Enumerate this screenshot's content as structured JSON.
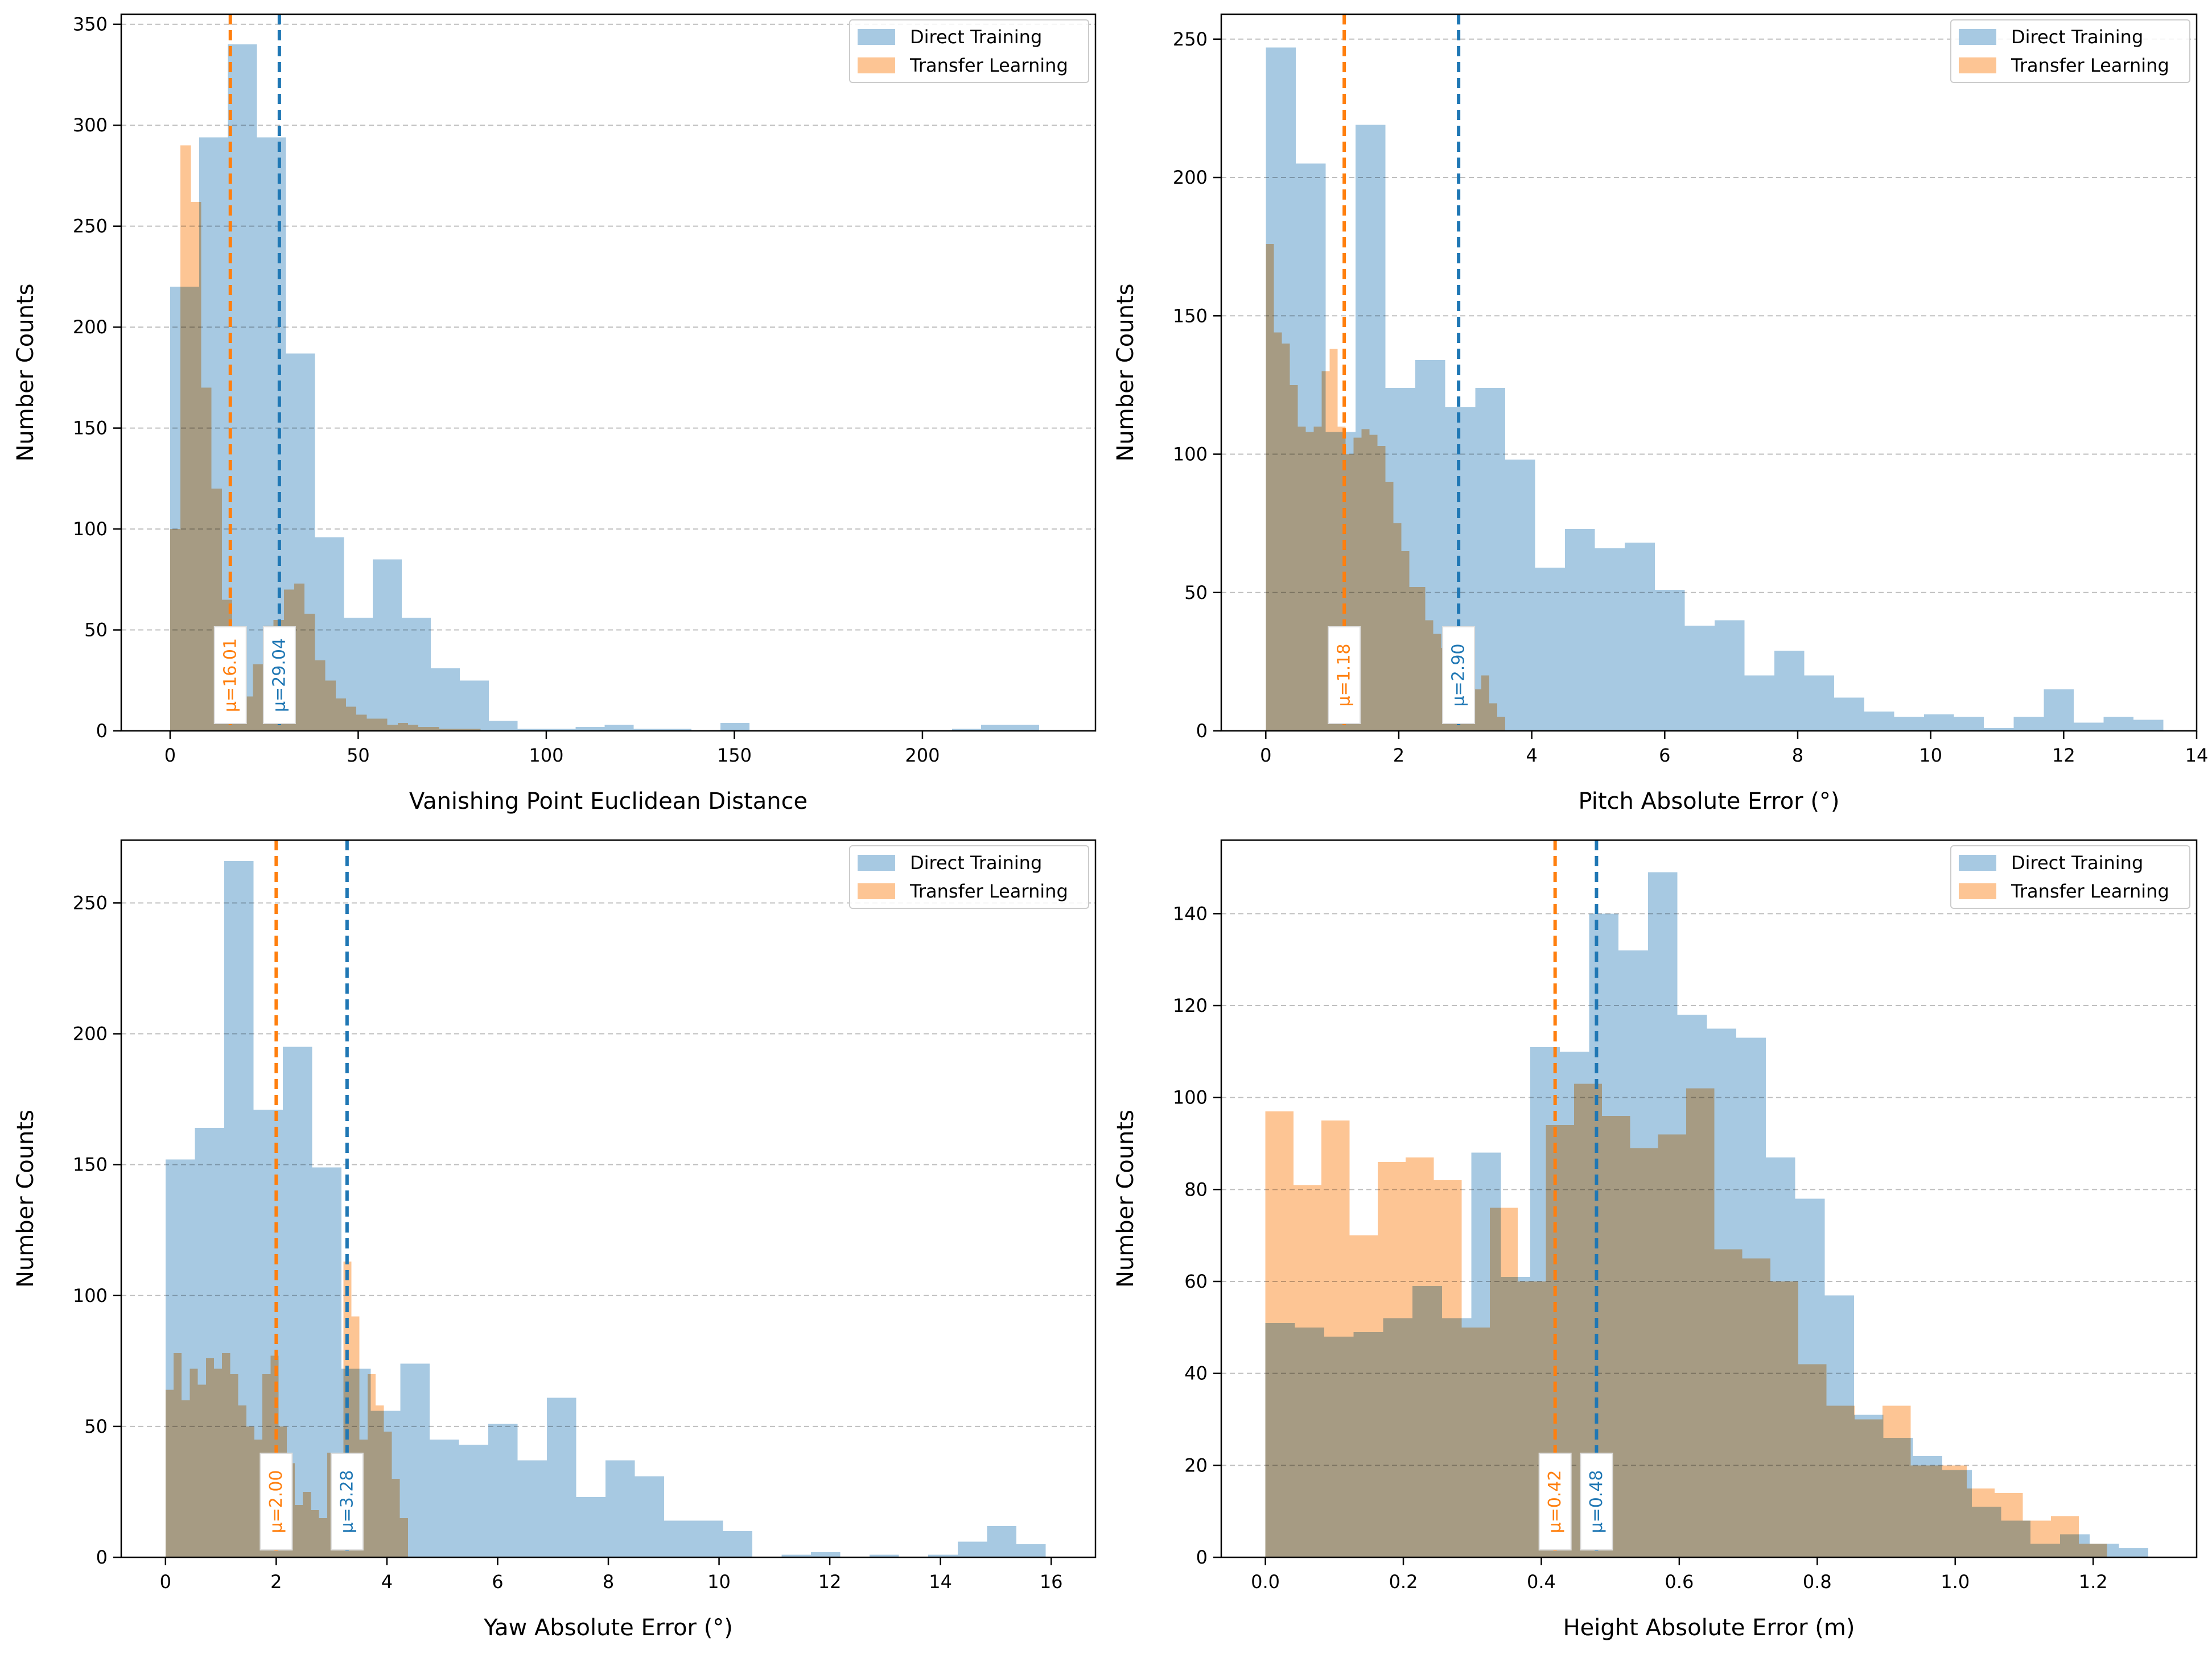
{
  "colors": {
    "direct": "#1f77b4",
    "transfer": "#ff7f0e",
    "direct_fill": "#a7c9e2",
    "transfer_fill": "#fdc594",
    "overlap_fill": "#c7a37f",
    "grid": "#b0b0b0",
    "axis": "#000000"
  },
  "chart_data": [
    {
      "type": "histogram",
      "xlabel": "Vanishing Point Euclidean Distance",
      "ylabel": "Number Counts",
      "xlim": [
        -13,
        246
      ],
      "ylim": [
        0,
        355
      ],
      "xticks": [
        0,
        50,
        100,
        150,
        200
      ],
      "yticks": [
        0,
        50,
        100,
        150,
        200,
        250,
        300,
        350
      ],
      "legend": [
        "Direct Training",
        "Transfer Learning"
      ],
      "legend_position": "top-right",
      "series": [
        {
          "name": "Direct Training",
          "bin_edges": [
            0,
            7.7,
            15.4,
            23.1,
            30.8,
            38.5,
            46.2,
            53.9,
            61.6,
            69.3,
            77,
            84.7,
            92.4,
            100.1,
            107.8,
            115.5,
            123.2,
            130.9,
            138.6,
            146.3,
            154,
            161.7,
            169.4,
            177.1,
            184.8,
            192.5,
            200.2,
            207.9,
            215.6,
            223.3,
            231
          ],
          "counts": [
            220,
            294,
            340,
            294,
            187,
            96,
            56,
            85,
            56,
            31,
            25,
            5,
            1,
            1,
            2,
            3,
            1,
            1,
            0,
            4,
            0,
            0,
            0,
            0,
            0,
            0,
            0,
            1,
            3,
            3
          ]
        },
        {
          "name": "Transfer Learning",
          "bin_edges": [
            0,
            2.75,
            5.5,
            8.25,
            11,
            13.75,
            16.5,
            19.25,
            22,
            24.75,
            27.5,
            30.25,
            33,
            35.75,
            38.5,
            41.25,
            44,
            46.75,
            49.5,
            52.25,
            55,
            57.75,
            60.5,
            63.25,
            66,
            68.75,
            71.5,
            74.25,
            77,
            79.75,
            82.5
          ],
          "counts": [
            100,
            290,
            262,
            170,
            120,
            65,
            45,
            17,
            33,
            52,
            55,
            70,
            73,
            58,
            35,
            25,
            16,
            12,
            8,
            6,
            6,
            3,
            4,
            3,
            2,
            2,
            1,
            1,
            1,
            1
          ]
        }
      ],
      "means": [
        {
          "series": "Transfer Learning",
          "value": 16.01,
          "label": "μ=16.01"
        },
        {
          "series": "Direct Training",
          "value": 29.04,
          "label": "μ=29.04"
        }
      ]
    },
    {
      "type": "histogram",
      "xlabel": "Pitch Absolute Error (°)",
      "ylabel": "Number Counts",
      "xlim": [
        -0.67,
        14
      ],
      "ylim": [
        0,
        259
      ],
      "xticks": [
        0,
        2,
        4,
        6,
        8,
        10,
        12,
        14
      ],
      "yticks": [
        0,
        50,
        100,
        150,
        200,
        250
      ],
      "legend": [
        "Direct Training",
        "Transfer Learning"
      ],
      "legend_position": "top-right",
      "series": [
        {
          "name": "Direct Training",
          "bin_edges": [
            0,
            0.45,
            0.9,
            1.35,
            1.8,
            2.25,
            2.7,
            3.15,
            3.6,
            4.05,
            4.5,
            4.95,
            5.4,
            5.85,
            6.3,
            6.75,
            7.2,
            7.65,
            8.1,
            8.55,
            9,
            9.45,
            9.9,
            10.35,
            10.8,
            11.25,
            11.7,
            12.15,
            12.6,
            13.05,
            13.5
          ],
          "counts": [
            247,
            205,
            108,
            219,
            124,
            134,
            117,
            124,
            98,
            59,
            73,
            66,
            68,
            51,
            38,
            40,
            20,
            29,
            20,
            12,
            7,
            5,
            6,
            5,
            1,
            5,
            15,
            3,
            5,
            4
          ]
        },
        {
          "name": "Transfer Learning",
          "bin_edges": [
            0,
            0.12,
            0.24,
            0.36,
            0.48,
            0.6,
            0.72,
            0.84,
            0.96,
            1.08,
            1.2,
            1.32,
            1.44,
            1.56,
            1.68,
            1.8,
            1.92,
            2.04,
            2.16,
            2.28,
            2.4,
            2.52,
            2.64,
            2.76,
            2.88,
            3,
            3.12,
            3.24,
            3.36,
            3.48,
            3.6
          ],
          "counts": [
            176,
            144,
            140,
            125,
            110,
            108,
            110,
            130,
            138,
            110,
            100,
            106,
            109,
            107,
            103,
            90,
            75,
            65,
            52,
            52,
            40,
            35,
            30,
            20,
            15,
            20,
            15,
            20,
            10,
            5
          ]
        }
      ],
      "means": [
        {
          "series": "Transfer Learning",
          "value": 1.18,
          "label": "μ=1.18"
        },
        {
          "series": "Direct Training",
          "value": 2.9,
          "label": "μ=2.90"
        }
      ]
    },
    {
      "type": "histogram",
      "xlabel": "Yaw Absolute Error (°)",
      "ylabel": "Number Counts",
      "xlim": [
        -0.8,
        16.8
      ],
      "ylim": [
        0,
        274
      ],
      "xticks": [
        0,
        2,
        4,
        6,
        8,
        10,
        12,
        14,
        16
      ],
      "yticks": [
        0,
        50,
        100,
        150,
        200,
        250
      ],
      "legend": [
        "Direct Training",
        "Transfer Learning"
      ],
      "legend_position": "top-right",
      "series": [
        {
          "name": "Direct Training",
          "bin_edges": [
            0,
            0.53,
            1.06,
            1.59,
            2.12,
            2.65,
            3.18,
            3.71,
            4.24,
            4.77,
            5.3,
            5.83,
            6.36,
            6.89,
            7.42,
            7.95,
            8.48,
            9.01,
            9.54,
            10.07,
            10.6,
            11.13,
            11.66,
            12.19,
            12.72,
            13.25,
            13.78,
            14.31,
            14.84,
            15.37,
            15.9
          ],
          "counts": [
            152,
            164,
            266,
            171,
            195,
            149,
            72,
            56,
            74,
            45,
            43,
            51,
            37,
            61,
            23,
            37,
            31,
            14,
            14,
            10,
            0,
            1,
            2,
            0,
            1,
            0,
            1,
            6,
            12,
            5
          ]
        },
        {
          "name": "Transfer Learning",
          "bin_edges": [
            0,
            0.146,
            0.292,
            0.438,
            0.584,
            0.73,
            0.876,
            1.022,
            1.168,
            1.314,
            1.46,
            1.606,
            1.752,
            1.898,
            2.044,
            2.19,
            2.336,
            2.482,
            2.628,
            2.774,
            2.92,
            3.066,
            3.212,
            3.358,
            3.504,
            3.65,
            3.796,
            3.942,
            4.088,
            4.234,
            4.38
          ],
          "counts": [
            64,
            78,
            60,
            72,
            66,
            76,
            72,
            78,
            70,
            58,
            50,
            45,
            70,
            77,
            50,
            36,
            20,
            25,
            18,
            15,
            40,
            35,
            113,
            92,
            45,
            70,
            58,
            48,
            30,
            15
          ]
        }
      ],
      "means": [
        {
          "series": "Transfer Learning",
          "value": 2.0,
          "label": "μ=2.00"
        },
        {
          "series": "Direct Training",
          "value": 3.28,
          "label": "μ=3.28"
        }
      ]
    },
    {
      "type": "histogram",
      "xlabel": "Height Absolute Error (m)",
      "ylabel": "Number Counts",
      "xlim": [
        -0.064,
        1.35
      ],
      "ylim": [
        0,
        156
      ],
      "xticks": [
        0.0,
        0.2,
        0.4,
        0.6,
        0.8,
        1.0,
        1.2
      ],
      "tick_format": 1,
      "yticks": [
        0,
        20,
        40,
        60,
        80,
        100,
        120,
        140
      ],
      "legend": [
        "Direct Training",
        "Transfer Learning"
      ],
      "legend_position": "top-right",
      "series": [
        {
          "name": "Direct Training",
          "bin_edges": [
            0,
            0.0427,
            0.0853,
            0.128,
            0.1707,
            0.2133,
            0.256,
            0.2987,
            0.3413,
            0.384,
            0.4267,
            0.4693,
            0.512,
            0.5547,
            0.5973,
            0.64,
            0.6827,
            0.7253,
            0.768,
            0.8107,
            0.8533,
            0.896,
            0.9387,
            0.9813,
            1.024,
            1.0667,
            1.1093,
            1.152,
            1.1947,
            1.2373,
            1.28
          ],
          "counts": [
            51,
            50,
            48,
            49,
            52,
            59,
            52,
            88,
            61,
            111,
            110,
            140,
            132,
            149,
            118,
            115,
            113,
            87,
            78,
            57,
            31,
            26,
            22,
            19,
            11,
            8,
            3,
            5,
            3,
            2
          ]
        },
        {
          "name": "Transfer Learning",
          "bin_edges": [
            0,
            0.0407,
            0.0813,
            0.122,
            0.1627,
            0.2033,
            0.244,
            0.2847,
            0.3253,
            0.366,
            0.4067,
            0.4473,
            0.488,
            0.5287,
            0.5693,
            0.61,
            0.6507,
            0.6913,
            0.732,
            0.7727,
            0.8133,
            0.854,
            0.8947,
            0.9353,
            0.976,
            1.0167,
            1.0573,
            1.098,
            1.1387,
            1.1793,
            1.22
          ],
          "counts": [
            97,
            81,
            95,
            70,
            86,
            87,
            82,
            50,
            76,
            60,
            94,
            103,
            96,
            89,
            92,
            102,
            67,
            65,
            60,
            42,
            33,
            30,
            33,
            20,
            20,
            15,
            14,
            8,
            9,
            3
          ]
        }
      ],
      "means": [
        {
          "series": "Transfer Learning",
          "value": 0.42,
          "label": "μ=0.42"
        },
        {
          "series": "Direct Training",
          "value": 0.48,
          "label": "μ=0.48"
        }
      ]
    }
  ]
}
